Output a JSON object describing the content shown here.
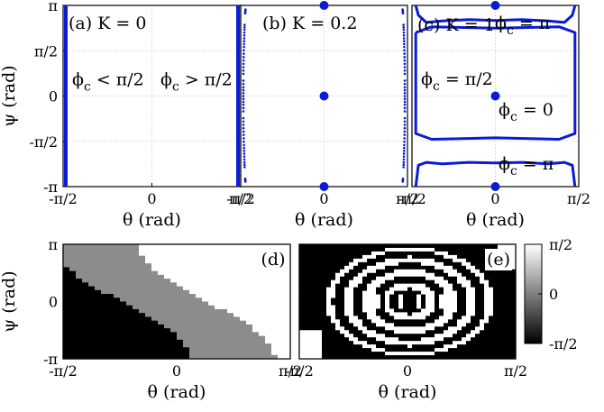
{
  "chart_data": [
    {
      "panel": "a",
      "type": "scatter",
      "title": "(a) K = 0",
      "xlabel": "θ (rad)",
      "ylabel": "ψ (rad)",
      "xlim": [
        -1.5708,
        1.5708
      ],
      "ylim": [
        -3.1416,
        3.1416
      ],
      "xticks": [
        "-π/2",
        "0",
        "π/2"
      ],
      "yticks": [
        "π",
        "π/2",
        "0",
        "-π/2",
        "-π"
      ],
      "grid": true,
      "annotations": [
        "ϕc < π/2",
        "ϕc > π/2"
      ],
      "series": [
        {
          "color": "#0b1bd6",
          "points": [
            [
              -1.5708,
              -3.1416
            ],
            [
              -1.5708,
              3.1416
            ]
          ]
        },
        {
          "color": "#0b1bd6",
          "points": [
            [
              1.5708,
              -3.1416
            ],
            [
              1.5708,
              3.1416
            ]
          ]
        }
      ]
    },
    {
      "panel": "b",
      "type": "scatter",
      "title": "(b) K = 0.2",
      "xlabel": "θ (rad)",
      "xlim": [
        -1.5708,
        1.5708
      ],
      "ylim": [
        -3.1416,
        3.1416
      ],
      "xticks": [
        "-π/2",
        "0",
        "π/2"
      ],
      "grid": true,
      "fixed_points": [
        [
          0,
          3.1416
        ],
        [
          0,
          0
        ],
        [
          0,
          -3.1416
        ]
      ],
      "series": [
        {
          "color": "#0b1bd6",
          "points": [
            [
              -1.48,
              3.0
            ],
            [
              -1.49,
              2.8
            ],
            [
              -1.5,
              2.3
            ],
            [
              -1.51,
              1.7
            ],
            [
              -1.52,
              1.0
            ],
            [
              -1.52,
              0.3
            ],
            [
              -1.52,
              -0.3
            ],
            [
              -1.52,
              -1.0
            ],
            [
              -1.51,
              -1.7
            ],
            [
              -1.5,
              -2.3
            ],
            [
              -1.49,
              -2.8
            ],
            [
              -1.48,
              -3.0
            ]
          ]
        },
        {
          "color": "#0b1bd6",
          "points": [
            [
              1.48,
              3.0
            ],
            [
              1.49,
              2.8
            ],
            [
              1.5,
              2.3
            ],
            [
              1.51,
              1.7
            ],
            [
              1.52,
              1.0
            ],
            [
              1.52,
              0.3
            ],
            [
              1.52,
              -0.3
            ],
            [
              1.52,
              -1.0
            ],
            [
              1.51,
              -1.7
            ],
            [
              1.5,
              -2.3
            ],
            [
              1.49,
              -2.8
            ],
            [
              1.48,
              -3.0
            ]
          ]
        }
      ]
    },
    {
      "panel": "c",
      "type": "line",
      "title": "(c) K = 1",
      "xlabel": "θ (rad)",
      "xlim": [
        -1.5708,
        1.5708
      ],
      "ylim": [
        -3.1416,
        3.1416
      ],
      "xticks": [
        "-π/2",
        "0",
        "π/2"
      ],
      "grid": true,
      "annotations": [
        "ϕc = π",
        "ϕc = π/2",
        "ϕc = 0",
        "ϕc = π"
      ],
      "fixed_points": [
        [
          0,
          3.1416
        ],
        [
          0,
          0
        ],
        [
          0,
          -3.1416
        ]
      ],
      "series": [
        {
          "color": "#0b1bd6",
          "points": [
            [
              -1.5,
              3.14
            ],
            [
              -1.45,
              2.8
            ],
            [
              -1.3,
              2.55
            ],
            [
              -1.0,
              2.6
            ],
            [
              -0.5,
              2.65
            ],
            [
              0,
              2.62
            ],
            [
              0.5,
              2.65
            ],
            [
              1.0,
              2.6
            ],
            [
              1.3,
              2.55
            ],
            [
              1.45,
              2.8
            ],
            [
              1.5,
              3.14
            ]
          ]
        },
        {
          "color": "#0b1bd6",
          "points": [
            [
              -1.5,
              2.2
            ],
            [
              -1.5,
              -1.3
            ],
            [
              -1.2,
              -1.5
            ],
            [
              0,
              -1.45
            ],
            [
              1.2,
              -1.5
            ],
            [
              1.5,
              -1.3
            ],
            [
              1.5,
              2.2
            ],
            [
              1.2,
              2.4
            ],
            [
              0,
              2.35
            ],
            [
              -1.2,
              2.4
            ],
            [
              -1.5,
              2.2
            ]
          ]
        },
        {
          "color": "#0b1bd6",
          "points": [
            [
              -1.5,
              -3.14
            ],
            [
              -1.45,
              -2.4
            ],
            [
              -1.3,
              -2.3
            ],
            [
              -1.0,
              -2.35
            ],
            [
              -0.5,
              -2.3
            ],
            [
              0,
              -2.32
            ],
            [
              0.5,
              -2.3
            ],
            [
              1.0,
              -2.35
            ],
            [
              1.3,
              -2.3
            ],
            [
              1.45,
              -2.4
            ],
            [
              1.5,
              -3.14
            ]
          ]
        }
      ]
    },
    {
      "panel": "d",
      "type": "heatmap",
      "title": "(d)",
      "xlabel": "θ (rad)",
      "ylabel": "ψ (rad)",
      "xlim": [
        -1.5708,
        1.5708
      ],
      "ylim": [
        -3.1416,
        3.1416
      ],
      "xticks": [
        "-π/2",
        "0",
        "π/2"
      ],
      "yticks": [
        "π",
        "0",
        "-π"
      ],
      "levels": [
        "black",
        "gray",
        "white"
      ]
    },
    {
      "panel": "e",
      "type": "heatmap",
      "title": "(e)",
      "xlabel": "θ (rad)",
      "xlim": [
        -1.5708,
        1.5708
      ],
      "ylim": [
        -3.1416,
        3.1416
      ],
      "xticks": [
        "-π/2",
        "0",
        "π/2"
      ],
      "colorbar": {
        "ticks": [
          "π/2",
          "0",
          "-π/2"
        ],
        "range": [
          -1.5708,
          1.5708
        ],
        "colors": [
          "#000000",
          "#ffffff"
        ]
      }
    }
  ]
}
